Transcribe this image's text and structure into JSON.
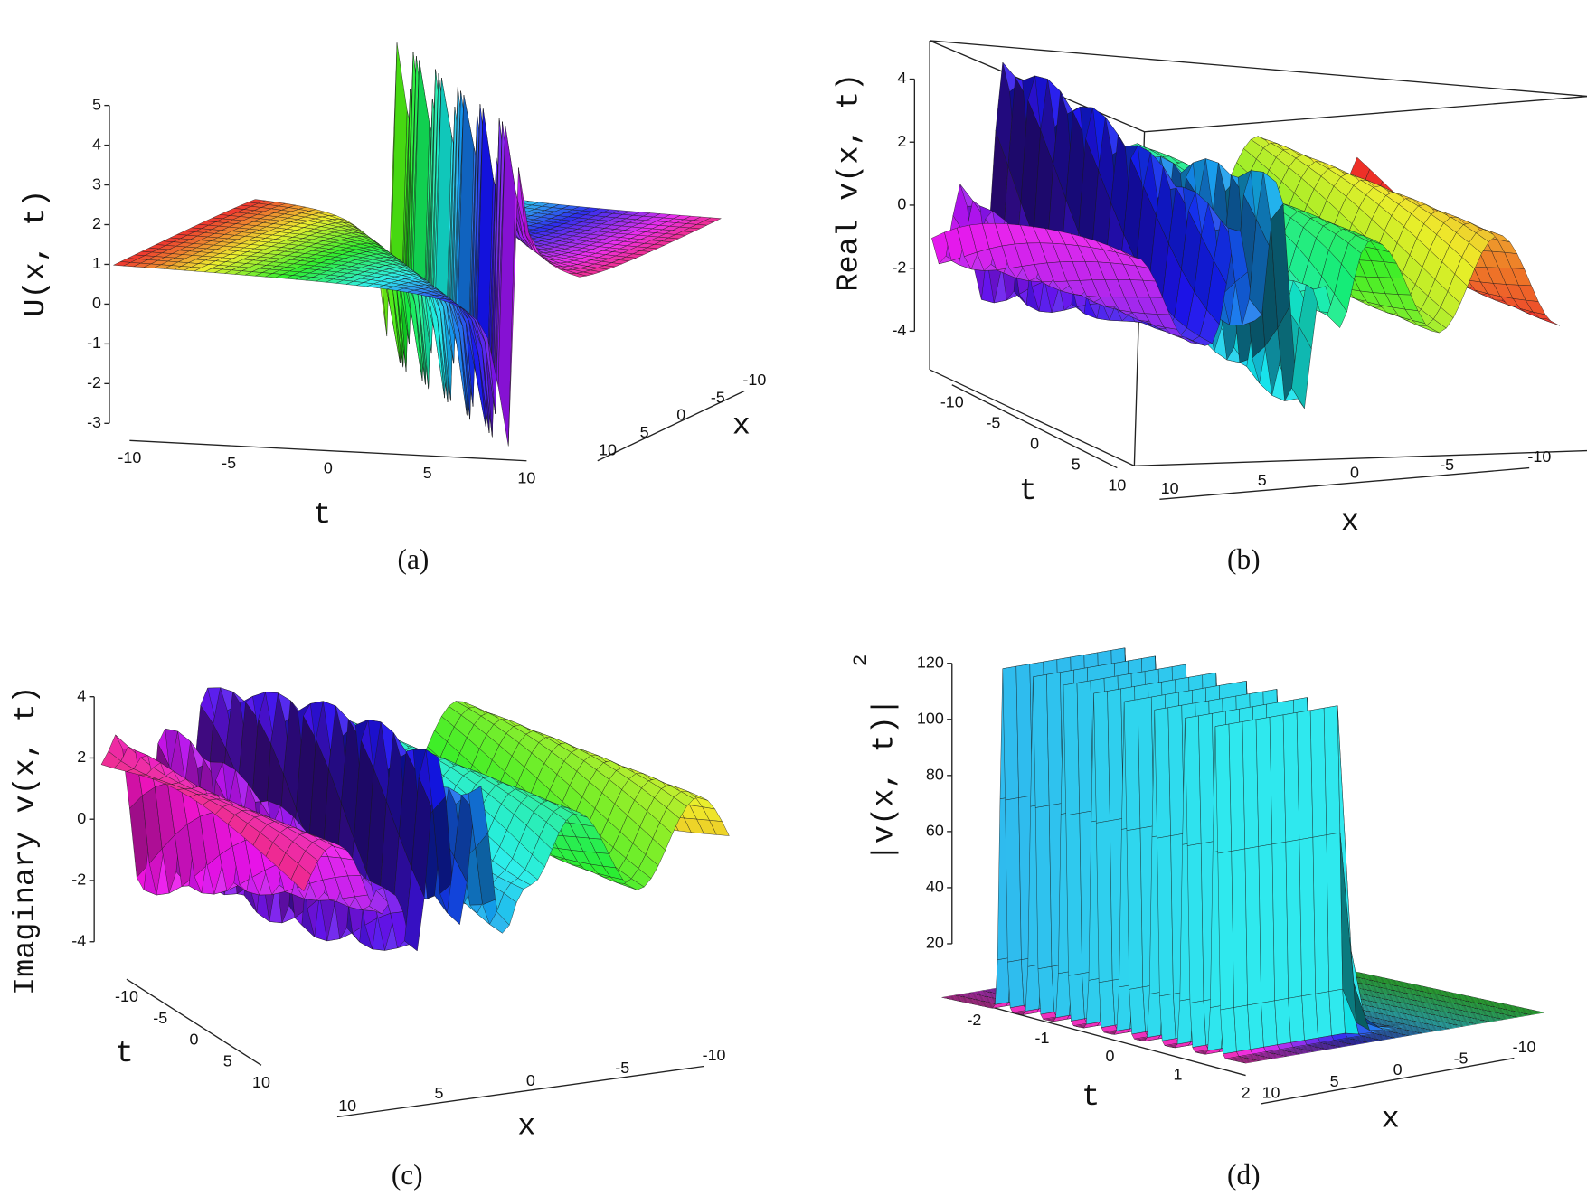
{
  "panels": [
    {
      "caption": "(a)",
      "z_label": "U(x, t)",
      "z_ticks": [
        "5",
        "4",
        "3",
        "2",
        "1",
        "0",
        "-1",
        "-2",
        "-3"
      ],
      "t_label": "t",
      "t_ticks": [
        "-10",
        "-5",
        "0",
        "5",
        "10"
      ],
      "x_label": "x",
      "x_ticks": [
        "-10",
        "-5",
        "0",
        "5",
        "10"
      ]
    },
    {
      "caption": "(b)",
      "z_label": "Real v(x, t)",
      "z_ticks": [
        "4",
        "2",
        "0",
        "-2",
        "-4"
      ],
      "t_label": "t",
      "t_ticks": [
        "-10",
        "-5",
        "0",
        "5",
        "10"
      ],
      "x_label": "x",
      "x_ticks": [
        "10",
        "5",
        "0",
        "-5",
        "-10"
      ]
    },
    {
      "caption": "(c)",
      "z_label": "Imaginary v(x, t)",
      "z_ticks": [
        "4",
        "2",
        "0",
        "-2",
        "-4"
      ],
      "t_label": "t",
      "t_ticks": [
        "-10",
        "-5",
        "0",
        "5",
        "10"
      ],
      "x_label": "x",
      "x_ticks": [
        "10",
        "5",
        "0",
        "-5",
        "-10"
      ]
    },
    {
      "caption": "(d)",
      "z_label": "|v(x, t)|",
      "z_label_exponent": "2",
      "z_ticks": [
        "120",
        "100",
        "80",
        "60",
        "40",
        "20"
      ],
      "t_label": "t",
      "t_ticks": [
        "-2",
        "-1",
        "0",
        "1",
        "2"
      ],
      "x_label": "x",
      "x_ticks": [
        "10",
        "5",
        "0",
        "-5",
        "-10"
      ]
    }
  ]
}
